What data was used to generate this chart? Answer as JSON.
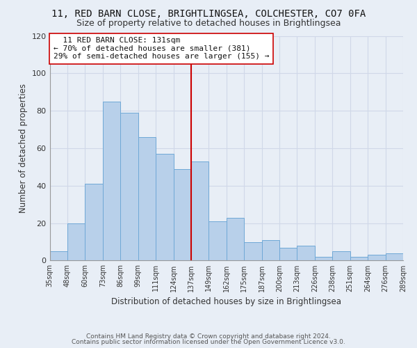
{
  "title": "11, RED BARN CLOSE, BRIGHTLINGSEA, COLCHESTER, CO7 0FA",
  "subtitle": "Size of property relative to detached houses in Brightlingsea",
  "xlabel": "Distribution of detached houses by size in Brightlingsea",
  "ylabel": "Number of detached properties",
  "footer_line1": "Contains HM Land Registry data © Crown copyright and database right 2024.",
  "footer_line2": "Contains public sector information licensed under the Open Government Licence v3.0.",
  "bar_labels": [
    "35sqm",
    "48sqm",
    "60sqm",
    "73sqm",
    "86sqm",
    "99sqm",
    "111sqm",
    "124sqm",
    "137sqm",
    "149sqm",
    "162sqm",
    "175sqm",
    "187sqm",
    "200sqm",
    "213sqm",
    "226sqm",
    "238sqm",
    "251sqm",
    "264sqm",
    "276sqm",
    "289sqm"
  ],
  "bar_values": [
    5,
    20,
    41,
    85,
    79,
    66,
    57,
    49,
    53,
    21,
    23,
    10,
    11,
    7,
    8,
    2,
    5,
    2,
    3,
    4
  ],
  "bar_color": "#b8d0ea",
  "bar_edge_color": "#6fa8d6",
  "annotation_title": "11 RED BARN CLOSE: 131sqm",
  "annotation_line1": "← 70% of detached houses are smaller (381)",
  "annotation_line2": "29% of semi-detached houses are larger (155) →",
  "vline_color": "#cc0000",
  "annotation_box_color": "#ffffff",
  "annotation_box_edge": "#cc0000",
  "ylim": [
    0,
    120
  ],
  "yticks": [
    0,
    20,
    40,
    60,
    80,
    100,
    120
  ],
  "background_color": "#e8eef6",
  "grid_color": "#d0d8e8"
}
